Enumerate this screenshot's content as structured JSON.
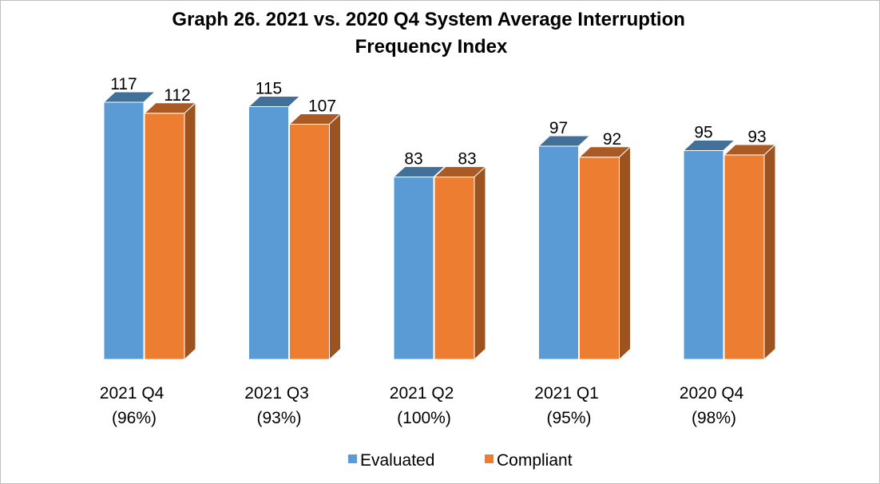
{
  "chart_data": {
    "type": "bar3d",
    "title": "Graph 26. 2021 vs. 2020 Q4 System Average Interruption Frequency Index",
    "categories": [
      "2021 Q4 (96%)",
      "2021 Q3 (93%)",
      "2021 Q2 (100%)",
      "2021 Q1 (95%)",
      "2020 Q4 (98%)"
    ],
    "series": [
      {
        "name": "Evaluated",
        "color": "#5b9bd5",
        "values": [
          117,
          115,
          83,
          97,
          95
        ]
      },
      {
        "name": "Compliant",
        "color": "#ed7d31",
        "values": [
          112,
          107,
          83,
          92,
          93
        ]
      }
    ],
    "legend": "bottom"
  }
}
